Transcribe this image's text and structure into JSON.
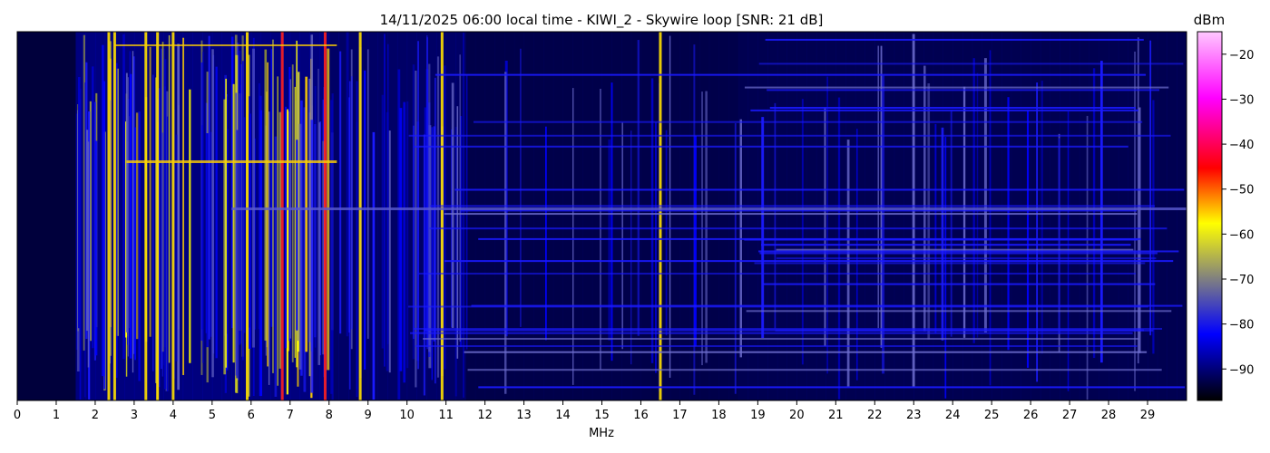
{
  "chart_data": {
    "type": "heatmap",
    "title": "14/11/2025 06:00 local time - KIWI_2 - Skywire loop [SNR: 21 dB]",
    "xlabel": "MHz",
    "ylabel": "",
    "xlim": [
      0,
      30
    ],
    "x_ticks": [
      "0",
      "1",
      "2",
      "3",
      "4",
      "5",
      "6",
      "7",
      "8",
      "9",
      "10",
      "11",
      "12",
      "13",
      "14",
      "15",
      "16",
      "17",
      "18",
      "19",
      "20",
      "21",
      "22",
      "23",
      "24",
      "25",
      "26",
      "27",
      "28",
      "29"
    ],
    "colorbar": {
      "label": "dBm",
      "range": [
        -97,
        -15
      ],
      "ticks": [
        "−20",
        "−30",
        "−40",
        "−50",
        "−60",
        "−70",
        "−80",
        "−90"
      ],
      "tick_values": [
        -20,
        -30,
        -40,
        -50,
        -60,
        -70,
        -80,
        -90
      ],
      "colormap": [
        "#000000",
        "#0000ff",
        "#808080",
        "#ffff00",
        "#ff0000",
        "#ff00ff",
        "#ffc8ff"
      ]
    },
    "strong_carriers_mhz": [
      2.35,
      2.5,
      3.3,
      3.6,
      4.0,
      5.9,
      6.8,
      7.9,
      8.8,
      10.9,
      16.5
    ],
    "grid": false,
    "colors": {
      "background": "#000000",
      "noise": "#00005a"
    }
  }
}
